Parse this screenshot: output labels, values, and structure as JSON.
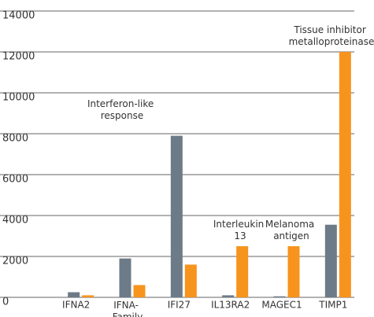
{
  "chart_data": {
    "type": "bar",
    "categories": [
      "IFNA2",
      "IFNA-\nFamily",
      "IFI27",
      "IL13RA2",
      "MAGEC1",
      "TIMP1"
    ],
    "series": [
      {
        "color": "#6d7b88",
        "values": [
          250,
          1900,
          7900,
          100,
          50,
          3550
        ]
      },
      {
        "color": "#f7941d",
        "values": [
          100,
          600,
          1600,
          2500,
          2500,
          12000
        ]
      }
    ],
    "ylim": [
      0,
      14000
    ],
    "yticks": [
      0,
      2000,
      4000,
      6000,
      8000,
      10000,
      12000,
      14000
    ],
    "grid": true,
    "annotations": [
      "Interferon-like\nresponse",
      "Interleukin\n13",
      "Melanoma\nantigen",
      "Tissue inhibitor\nmetalloproteinase"
    ]
  }
}
